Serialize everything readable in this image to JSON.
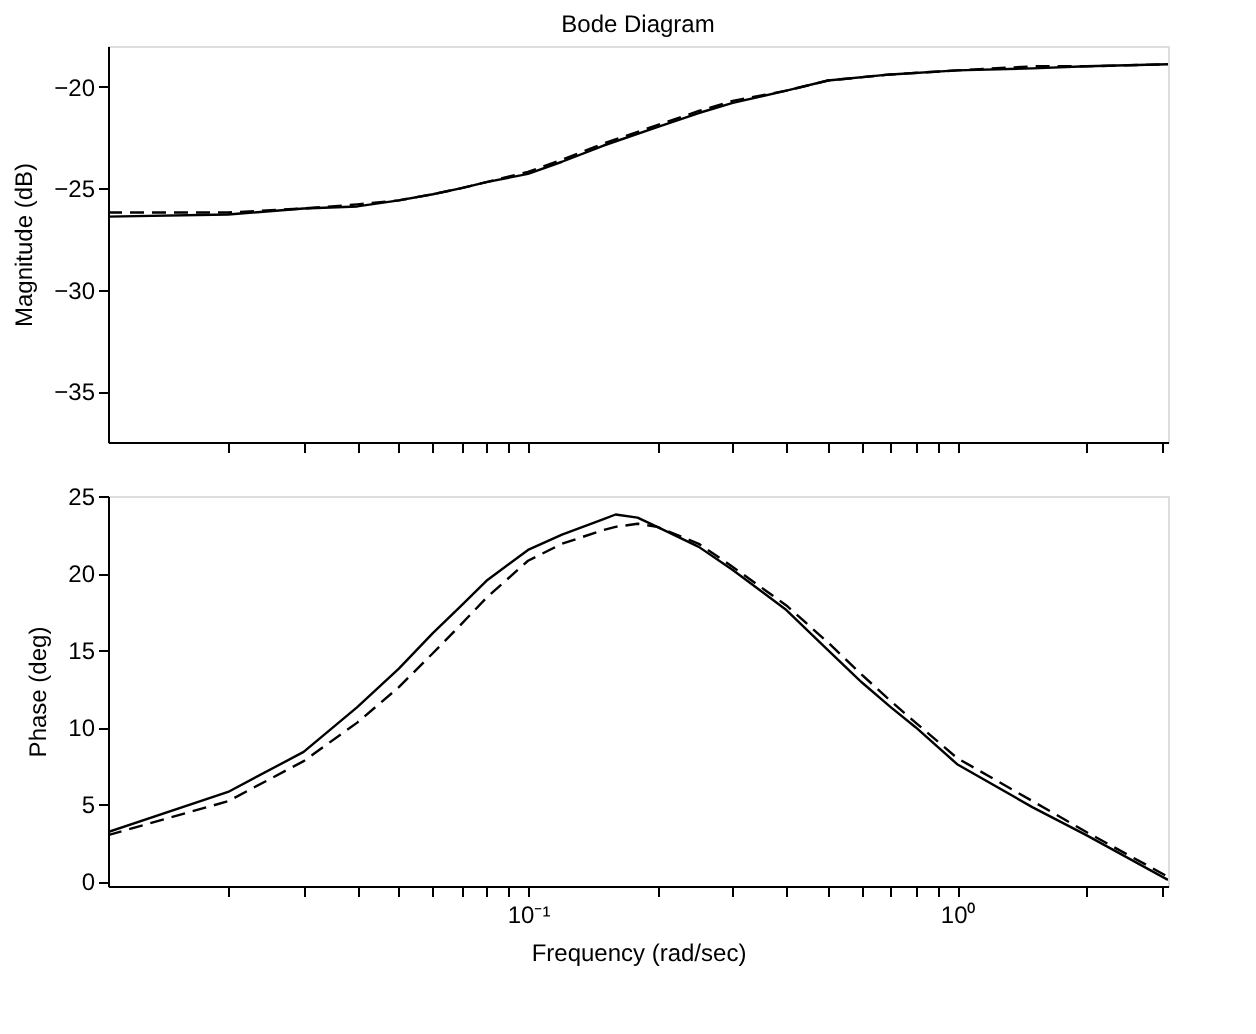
{
  "chart_data": [
    {
      "type": "line",
      "title": "Bode Diagram",
      "ylabel": "Magnitude (dB)",
      "log": "x",
      "grid": false,
      "tick_labels": "y",
      "x": [
        0.0105,
        0.02,
        0.03,
        0.04,
        0.05,
        0.06,
        0.07,
        0.08,
        0.1,
        0.12,
        0.15,
        0.2,
        0.25,
        0.3,
        0.4,
        0.5,
        0.7,
        1,
        1.5,
        2,
        3.1
      ],
      "series": [
        {
          "color": "#000000",
          "line_style": "solid",
          "values": [
            -26.4,
            -26.3,
            -26.0,
            -25.9,
            -25.6,
            -25.3,
            -25.0,
            -24.7,
            -24.3,
            -23.7,
            -22.9,
            -22.0,
            -21.3,
            -20.8,
            -20.2,
            -19.7,
            -19.4,
            -19.2,
            -19.1,
            -19.0,
            -18.9
          ]
        },
        {
          "color": "#000000",
          "line_style": "dashed",
          "values": [
            -26.2,
            -26.2,
            -26.0,
            -25.8,
            -25.6,
            -25.3,
            -25.0,
            -24.7,
            -24.2,
            -23.6,
            -22.8,
            -21.9,
            -21.2,
            -20.7,
            -20.2,
            -19.7,
            -19.4,
            -19.2,
            -19.0,
            -19.0,
            -18.9
          ]
        }
      ],
      "xlim": [
        0.0105,
        3.1
      ],
      "xticks": [
        {
          "value": 0.02,
          "label": null
        },
        {
          "value": 0.03,
          "label": null
        },
        {
          "value": 0.04,
          "label": null
        },
        {
          "value": 0.05,
          "label": null
        },
        {
          "value": 0.06,
          "label": null
        },
        {
          "value": 0.07,
          "label": null
        },
        {
          "value": 0.08,
          "label": null
        },
        {
          "value": 0.09,
          "label": null
        },
        {
          "value": 0.1,
          "label": null
        },
        {
          "value": 0.2,
          "label": null
        },
        {
          "value": 0.3,
          "label": null
        },
        {
          "value": 0.4,
          "label": null
        },
        {
          "value": 0.5,
          "label": null
        },
        {
          "value": 0.6,
          "label": null
        },
        {
          "value": 0.7,
          "label": null
        },
        {
          "value": 0.8,
          "label": null
        },
        {
          "value": 0.9,
          "label": null
        },
        {
          "value": 1,
          "label": null
        },
        {
          "value": 2,
          "label": null
        },
        {
          "value": 3,
          "label": null
        }
      ],
      "ylim": [
        -37.5,
        -18
      ],
      "yticks": [
        -35,
        -30,
        -25,
        -20
      ]
    },
    {
      "type": "line",
      "xlabel": "Frequency  (rad/sec)",
      "ylabel": "Phase (deg)",
      "log": "x",
      "grid": false,
      "x": [
        0.0105,
        0.02,
        0.03,
        0.04,
        0.05,
        0.06,
        0.07,
        0.08,
        0.1,
        0.12,
        0.15,
        0.16,
        0.18,
        0.2,
        0.25,
        0.3,
        0.4,
        0.5,
        0.6,
        0.7,
        0.8,
        1,
        1.5,
        2,
        3.1
      ],
      "series": [
        {
          "color": "#000000",
          "line_style": "solid",
          "values": [
            3.2,
            5.8,
            8.4,
            11.3,
            13.8,
            16.1,
            17.9,
            19.5,
            21.5,
            22.5,
            23.5,
            23.8,
            23.6,
            23.0,
            21.7,
            20.2,
            17.6,
            15.0,
            12.9,
            11.3,
            10.0,
            7.6,
            4.8,
            3.0,
            0.1
          ]
        },
        {
          "color": "#000000",
          "line_style": "dashed",
          "values": [
            3.0,
            5.2,
            7.8,
            10.3,
            12.6,
            14.8,
            16.7,
            18.4,
            20.8,
            21.9,
            22.8,
            23.0,
            23.2,
            23.0,
            21.9,
            20.4,
            17.9,
            15.5,
            13.4,
            11.7,
            10.3,
            8.0,
            5.2,
            3.2,
            0.3
          ]
        }
      ],
      "xlim": [
        0.0105,
        3.1
      ],
      "xticks": [
        {
          "value": 0.02,
          "label": null
        },
        {
          "value": 0.03,
          "label": null
        },
        {
          "value": 0.04,
          "label": null
        },
        {
          "value": 0.05,
          "label": null
        },
        {
          "value": 0.06,
          "label": null
        },
        {
          "value": 0.07,
          "label": null
        },
        {
          "value": 0.08,
          "label": null
        },
        {
          "value": 0.09,
          "label": null
        },
        {
          "value": 0.1,
          "label": "10⁻¹"
        },
        {
          "value": 0.2,
          "label": null
        },
        {
          "value": 0.3,
          "label": null
        },
        {
          "value": 0.4,
          "label": null
        },
        {
          "value": 0.5,
          "label": null
        },
        {
          "value": 0.6,
          "label": null
        },
        {
          "value": 0.7,
          "label": null
        },
        {
          "value": 0.8,
          "label": null
        },
        {
          "value": 0.9,
          "label": null
        },
        {
          "value": 1,
          "label": "10⁰"
        },
        {
          "value": 2,
          "label": null
        },
        {
          "value": 3,
          "label": null
        }
      ],
      "ylim": [
        -0.3,
        25
      ],
      "yticks": [
        0,
        5,
        10,
        15,
        20,
        25
      ]
    }
  ]
}
